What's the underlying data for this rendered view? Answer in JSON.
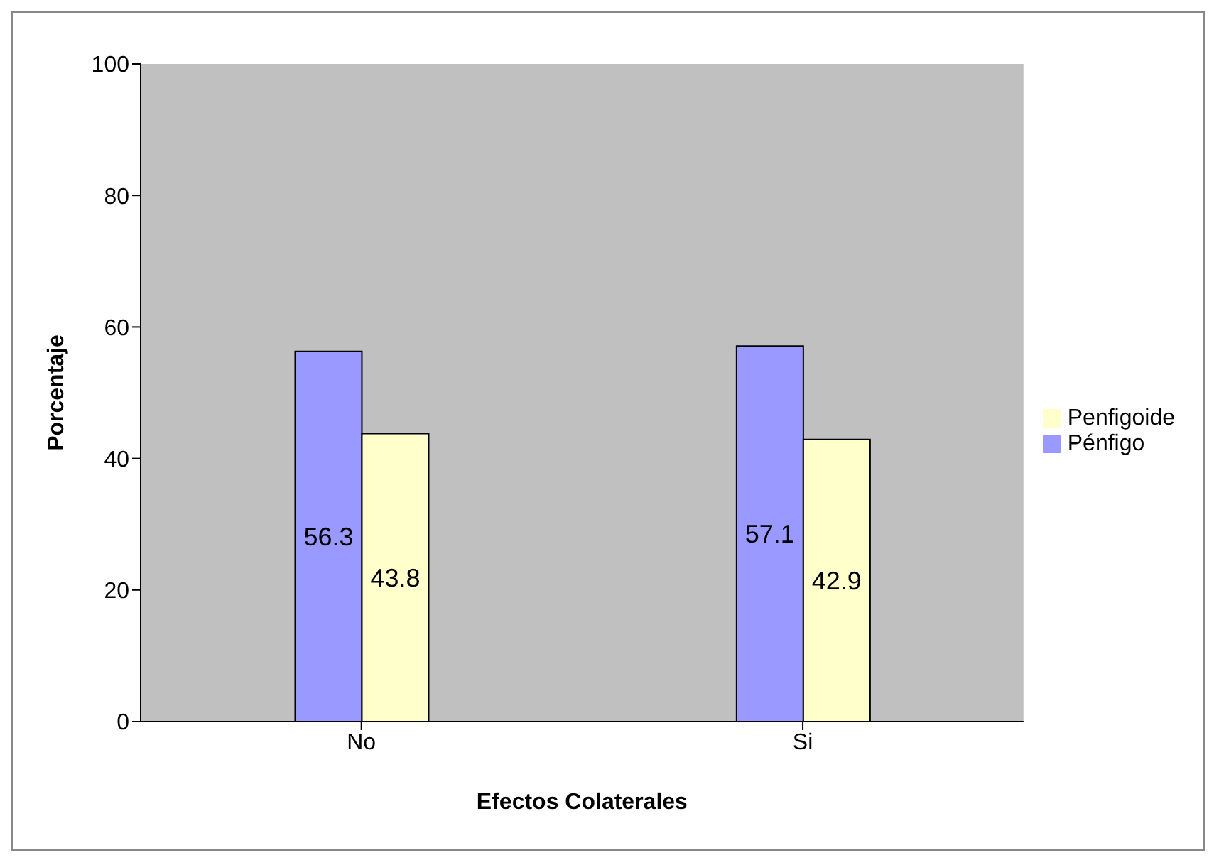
{
  "chart_data": {
    "type": "bar",
    "xlabel": "Efectos Colaterales",
    "ylabel": "Porcentaje",
    "categories": [
      "No",
      "Si"
    ],
    "series": [
      {
        "name": "Pénfigo",
        "color": "#9999ff",
        "values": [
          56.3,
          57.1
        ]
      },
      {
        "name": "Penfigoide",
        "color": "#ffffcc",
        "values": [
          43.8,
          42.9
        ]
      }
    ],
    "ylim": [
      0,
      100
    ],
    "yticks": [
      0,
      20,
      40,
      60,
      80,
      100
    ],
    "grid": false,
    "legend": "right",
    "data_labels": true
  }
}
